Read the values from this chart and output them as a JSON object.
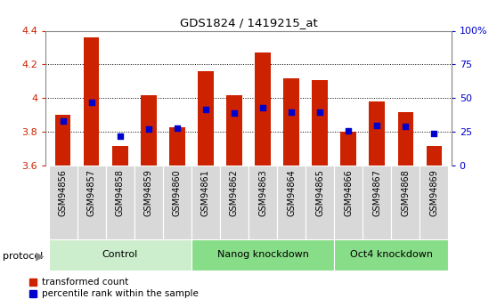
{
  "title": "GDS1824 / 1419215_at",
  "samples": [
    "GSM94856",
    "GSM94857",
    "GSM94858",
    "GSM94859",
    "GSM94860",
    "GSM94861",
    "GSM94862",
    "GSM94863",
    "GSM94864",
    "GSM94865",
    "GSM94866",
    "GSM94867",
    "GSM94868",
    "GSM94869"
  ],
  "transformed_count": [
    3.9,
    4.36,
    3.72,
    4.02,
    3.83,
    4.16,
    4.02,
    4.27,
    4.12,
    4.11,
    3.8,
    3.98,
    3.92,
    3.72
  ],
  "percentile_rank": [
    33,
    47,
    22,
    27,
    28,
    42,
    39,
    43,
    40,
    40,
    26,
    30,
    29,
    24
  ],
  "bar_color": "#cc2200",
  "dot_color": "#0000cc",
  "ymin": 3.6,
  "ymax": 4.4,
  "yticks": [
    3.6,
    3.8,
    4.0,
    4.2,
    4.4
  ],
  "ytick_labels": [
    "3.6",
    "3.8",
    "4",
    "4.2",
    "4.4"
  ],
  "y2min": 0,
  "y2max": 100,
  "y2ticks": [
    0,
    25,
    50,
    75,
    100
  ],
  "y2ticklabels": [
    "0",
    "25",
    "50",
    "75",
    "100%"
  ],
  "group_boundaries": [
    {
      "label": "Control",
      "start": 0,
      "end": 4,
      "color": "#cceecc"
    },
    {
      "label": "Nanog knockdown",
      "start": 5,
      "end": 9,
      "color": "#88dd88"
    },
    {
      "label": "Oct4 knockdown",
      "start": 10,
      "end": 13,
      "color": "#88dd88"
    }
  ],
  "protocol_label": "protocol",
  "legend_items": [
    {
      "label": "transformed count",
      "color": "#cc2200"
    },
    {
      "label": "percentile rank within the sample",
      "color": "#0000cc"
    }
  ],
  "bar_width": 0.55,
  "bg_color": "#ffffff",
  "tick_color_left": "#cc2200",
  "tick_color_right": "#0000cc",
  "ticklabel_bg": "#d8d8d8",
  "chart_bg": "#ffffff",
  "top_border_color": "#000000"
}
